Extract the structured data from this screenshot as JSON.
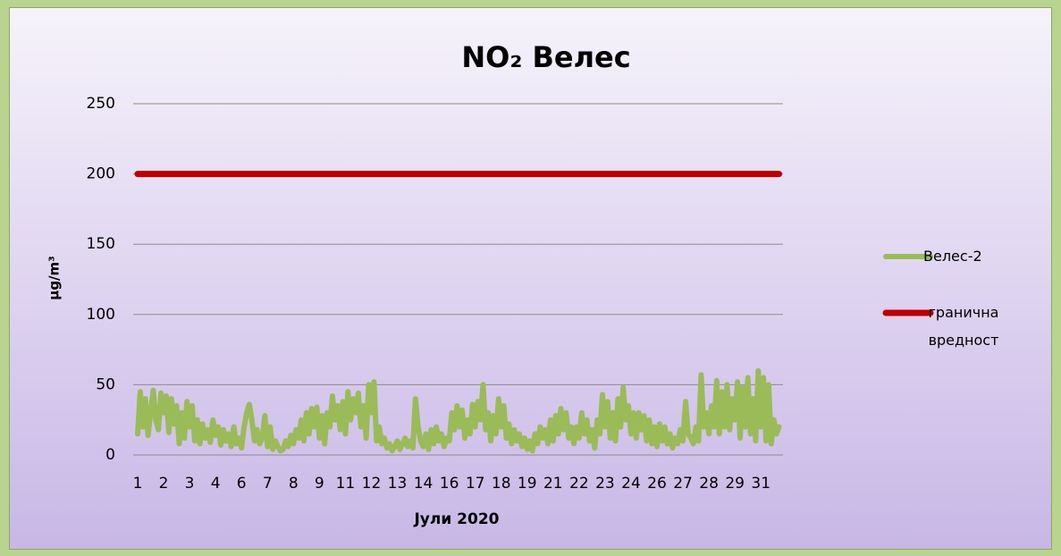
{
  "chart_data": {
    "type": "line",
    "title": "NO₂ Велес",
    "x_label": "Јули 2020",
    "y_label": "µg/m³",
    "ylim": [
      0,
      250
    ],
    "yticks": [
      0,
      50,
      100,
      150,
      200,
      250
    ],
    "grid": true,
    "legend": "right",
    "categories": [
      "1",
      null,
      null,
      null,
      null,
      null,
      null,
      null,
      null,
      null,
      "2",
      null,
      null,
      null,
      null,
      null,
      null,
      null,
      null,
      null,
      "3",
      null,
      null,
      null,
      null,
      null,
      null,
      null,
      null,
      null,
      "4",
      null,
      null,
      null,
      null,
      null,
      null,
      null,
      null,
      null,
      "6",
      null,
      null,
      null,
      null,
      null,
      null,
      null,
      null,
      null,
      "7",
      null,
      null,
      null,
      null,
      null,
      null,
      null,
      null,
      null,
      "8",
      null,
      null,
      null,
      null,
      null,
      null,
      null,
      null,
      null,
      "9",
      null,
      null,
      null,
      null,
      null,
      null,
      null,
      null,
      null,
      "11",
      null,
      null,
      null,
      null,
      null,
      null,
      null,
      null,
      null,
      "12",
      null,
      null,
      null,
      null,
      null,
      null,
      null,
      null,
      null,
      "13",
      null,
      null,
      null,
      null,
      null,
      null,
      null,
      null,
      null,
      "14",
      null,
      null,
      null,
      null,
      null,
      null,
      null,
      null,
      null,
      "16",
      null,
      null,
      null,
      null,
      null,
      null,
      null,
      null,
      null,
      "17",
      null,
      null,
      null,
      null,
      null,
      null,
      null,
      null,
      null,
      "18",
      null,
      null,
      null,
      null,
      null,
      null,
      null,
      null,
      null,
      "19",
      null,
      null,
      null,
      null,
      null,
      null,
      null,
      null,
      null,
      "21",
      null,
      null,
      null,
      null,
      null,
      null,
      null,
      null,
      null,
      "22",
      null,
      null,
      null,
      null,
      null,
      null,
      null,
      null,
      null,
      "23",
      null,
      null,
      null,
      null,
      null,
      null,
      null,
      null,
      null,
      "24",
      null,
      null,
      null,
      null,
      null,
      null,
      null,
      null,
      null,
      "26",
      null,
      null,
      null,
      null,
      null,
      null,
      null,
      null,
      null,
      "27",
      null,
      null,
      null,
      null,
      null,
      null,
      null,
      null,
      null,
      "28",
      null,
      null,
      null,
      null,
      null,
      null,
      null,
      null,
      null,
      "29",
      null,
      null,
      null,
      null,
      null,
      null,
      null,
      null,
      null,
      "31",
      null,
      null,
      null,
      null,
      null,
      null,
      null
    ],
    "series": [
      {
        "name": "Велес-2",
        "color": "#9bbb59",
        "values": [
          15,
          45,
          20,
          40,
          14,
          30,
          46,
          25,
          18,
          44,
          30,
          42,
          16,
          40,
          22,
          35,
          8,
          30,
          12,
          38,
          20,
          35,
          10,
          25,
          8,
          22,
          12,
          18,
          9,
          25,
          14,
          20,
          7,
          18,
          10,
          15,
          6,
          20,
          8,
          12,
          5,
          20,
          30,
          36,
          25,
          10,
          18,
          8,
          12,
          28,
          6,
          20,
          4,
          10,
          6,
          3,
          4,
          10,
          6,
          14,
          8,
          18,
          12,
          25,
          10,
          30,
          15,
          33,
          20,
          34,
          12,
          28,
          8,
          30,
          20,
          42,
          25,
          35,
          18,
          38,
          15,
          45,
          25,
          40,
          30,
          44,
          20,
          35,
          12,
          50,
          30,
          52,
          10,
          20,
          8,
          12,
          5,
          8,
          3,
          6,
          10,
          4,
          8,
          12,
          6,
          10,
          5,
          40,
          20,
          10,
          6,
          15,
          4,
          18,
          8,
          20,
          10,
          15,
          6,
          12,
          10,
          30,
          18,
          35,
          20,
          32,
          12,
          25,
          15,
          36,
          20,
          38,
          25,
          50,
          18,
          30,
          10,
          28,
          15,
          40,
          20,
          35,
          12,
          22,
          8,
          18,
          10,
          15,
          6,
          12,
          4,
          10,
          3,
          15,
          8,
          20,
          12,
          18,
          8,
          25,
          10,
          28,
          15,
          33,
          18,
          30,
          12,
          20,
          8,
          20,
          12,
          30,
          15,
          25,
          10,
          18,
          5,
          25,
          15,
          43,
          20,
          38,
          12,
          30,
          10,
          40,
          20,
          48,
          25,
          35,
          15,
          30,
          12,
          30,
          18,
          28,
          10,
          25,
          8,
          20,
          6,
          22,
          10,
          20,
          8,
          15,
          5,
          12,
          8,
          18,
          10,
          38,
          15,
          12,
          8,
          20,
          10,
          57,
          20,
          30,
          15,
          35,
          20,
          53,
          15,
          45,
          20,
          50,
          18,
          40,
          25,
          52,
          12,
          48,
          20,
          55,
          15,
          40,
          10,
          60,
          20,
          55,
          10,
          50,
          8,
          25,
          15,
          20
        ]
      },
      {
        "name": "гранична вредност",
        "color": "#c00000",
        "values": [
          200,
          200,
          200,
          200,
          200,
          200,
          200,
          200,
          200,
          200,
          200,
          200,
          200,
          200,
          200,
          200,
          200,
          200,
          200,
          200,
          200,
          200,
          200,
          200,
          200,
          200,
          200,
          200,
          200,
          200,
          200,
          200,
          200,
          200,
          200,
          200,
          200,
          200,
          200,
          200,
          200,
          200,
          200,
          200,
          200,
          200,
          200,
          200,
          200,
          200,
          200,
          200,
          200,
          200,
          200,
          200,
          200,
          200,
          200,
          200,
          200,
          200,
          200,
          200,
          200,
          200,
          200,
          200,
          200,
          200,
          200,
          200,
          200,
          200,
          200,
          200,
          200,
          200,
          200,
          200,
          200,
          200,
          200,
          200,
          200,
          200,
          200,
          200,
          200,
          200,
          200,
          200,
          200,
          200,
          200,
          200,
          200,
          200,
          200,
          200,
          200,
          200,
          200,
          200,
          200,
          200,
          200,
          200,
          200,
          200,
          200,
          200,
          200,
          200,
          200,
          200,
          200,
          200,
          200,
          200,
          200,
          200,
          200,
          200,
          200,
          200,
          200,
          200,
          200,
          200,
          200,
          200,
          200,
          200,
          200,
          200,
          200,
          200,
          200,
          200,
          200,
          200,
          200,
          200,
          200,
          200,
          200,
          200,
          200,
          200,
          200,
          200,
          200,
          200,
          200,
          200,
          200,
          200,
          200,
          200,
          200,
          200,
          200,
          200,
          200,
          200,
          200,
          200,
          200,
          200,
          200,
          200,
          200,
          200,
          200,
          200,
          200,
          200,
          200,
          200,
          200,
          200,
          200,
          200,
          200,
          200,
          200,
          200,
          200,
          200,
          200,
          200,
          200,
          200,
          200,
          200,
          200,
          200,
          200,
          200,
          200,
          200,
          200,
          200,
          200,
          200,
          200,
          200,
          200,
          200,
          200,
          200,
          200,
          200,
          200,
          200,
          200,
          200,
          200,
          200,
          200,
          200,
          200,
          200,
          200,
          200,
          200,
          200,
          200,
          200,
          200,
          200,
          200,
          200,
          200,
          200,
          200,
          200,
          200,
          200,
          200,
          200,
          200,
          200,
          200,
          200,
          200,
          200
        ]
      }
    ]
  }
}
